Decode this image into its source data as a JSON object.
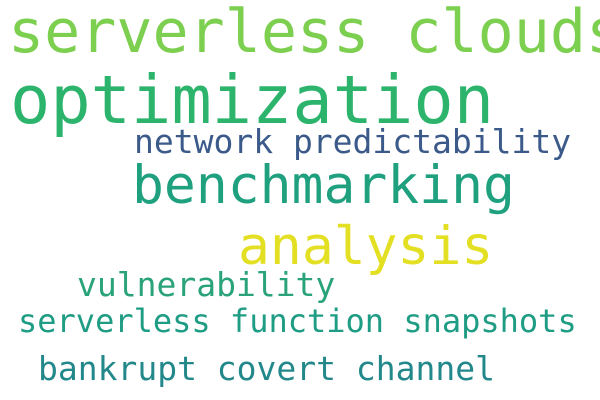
{
  "word_cloud": {
    "background": "#ffffff",
    "words": [
      {
        "text": "serverless clouds",
        "color": "#7ccf4f"
      },
      {
        "text": "optimization",
        "color": "#2db46c"
      },
      {
        "text": "network predictability",
        "color": "#3b5a8a"
      },
      {
        "text": "benchmarking",
        "color": "#1fa07e"
      },
      {
        "text": "analysis",
        "color": "#e3df23"
      },
      {
        "text": "vulnerability",
        "color": "#2aa37a"
      },
      {
        "text": "serverless function snapshots",
        "color": "#1e9c84"
      },
      {
        "text": "bankrupt covert channel",
        "color": "#22888a"
      }
    ]
  }
}
